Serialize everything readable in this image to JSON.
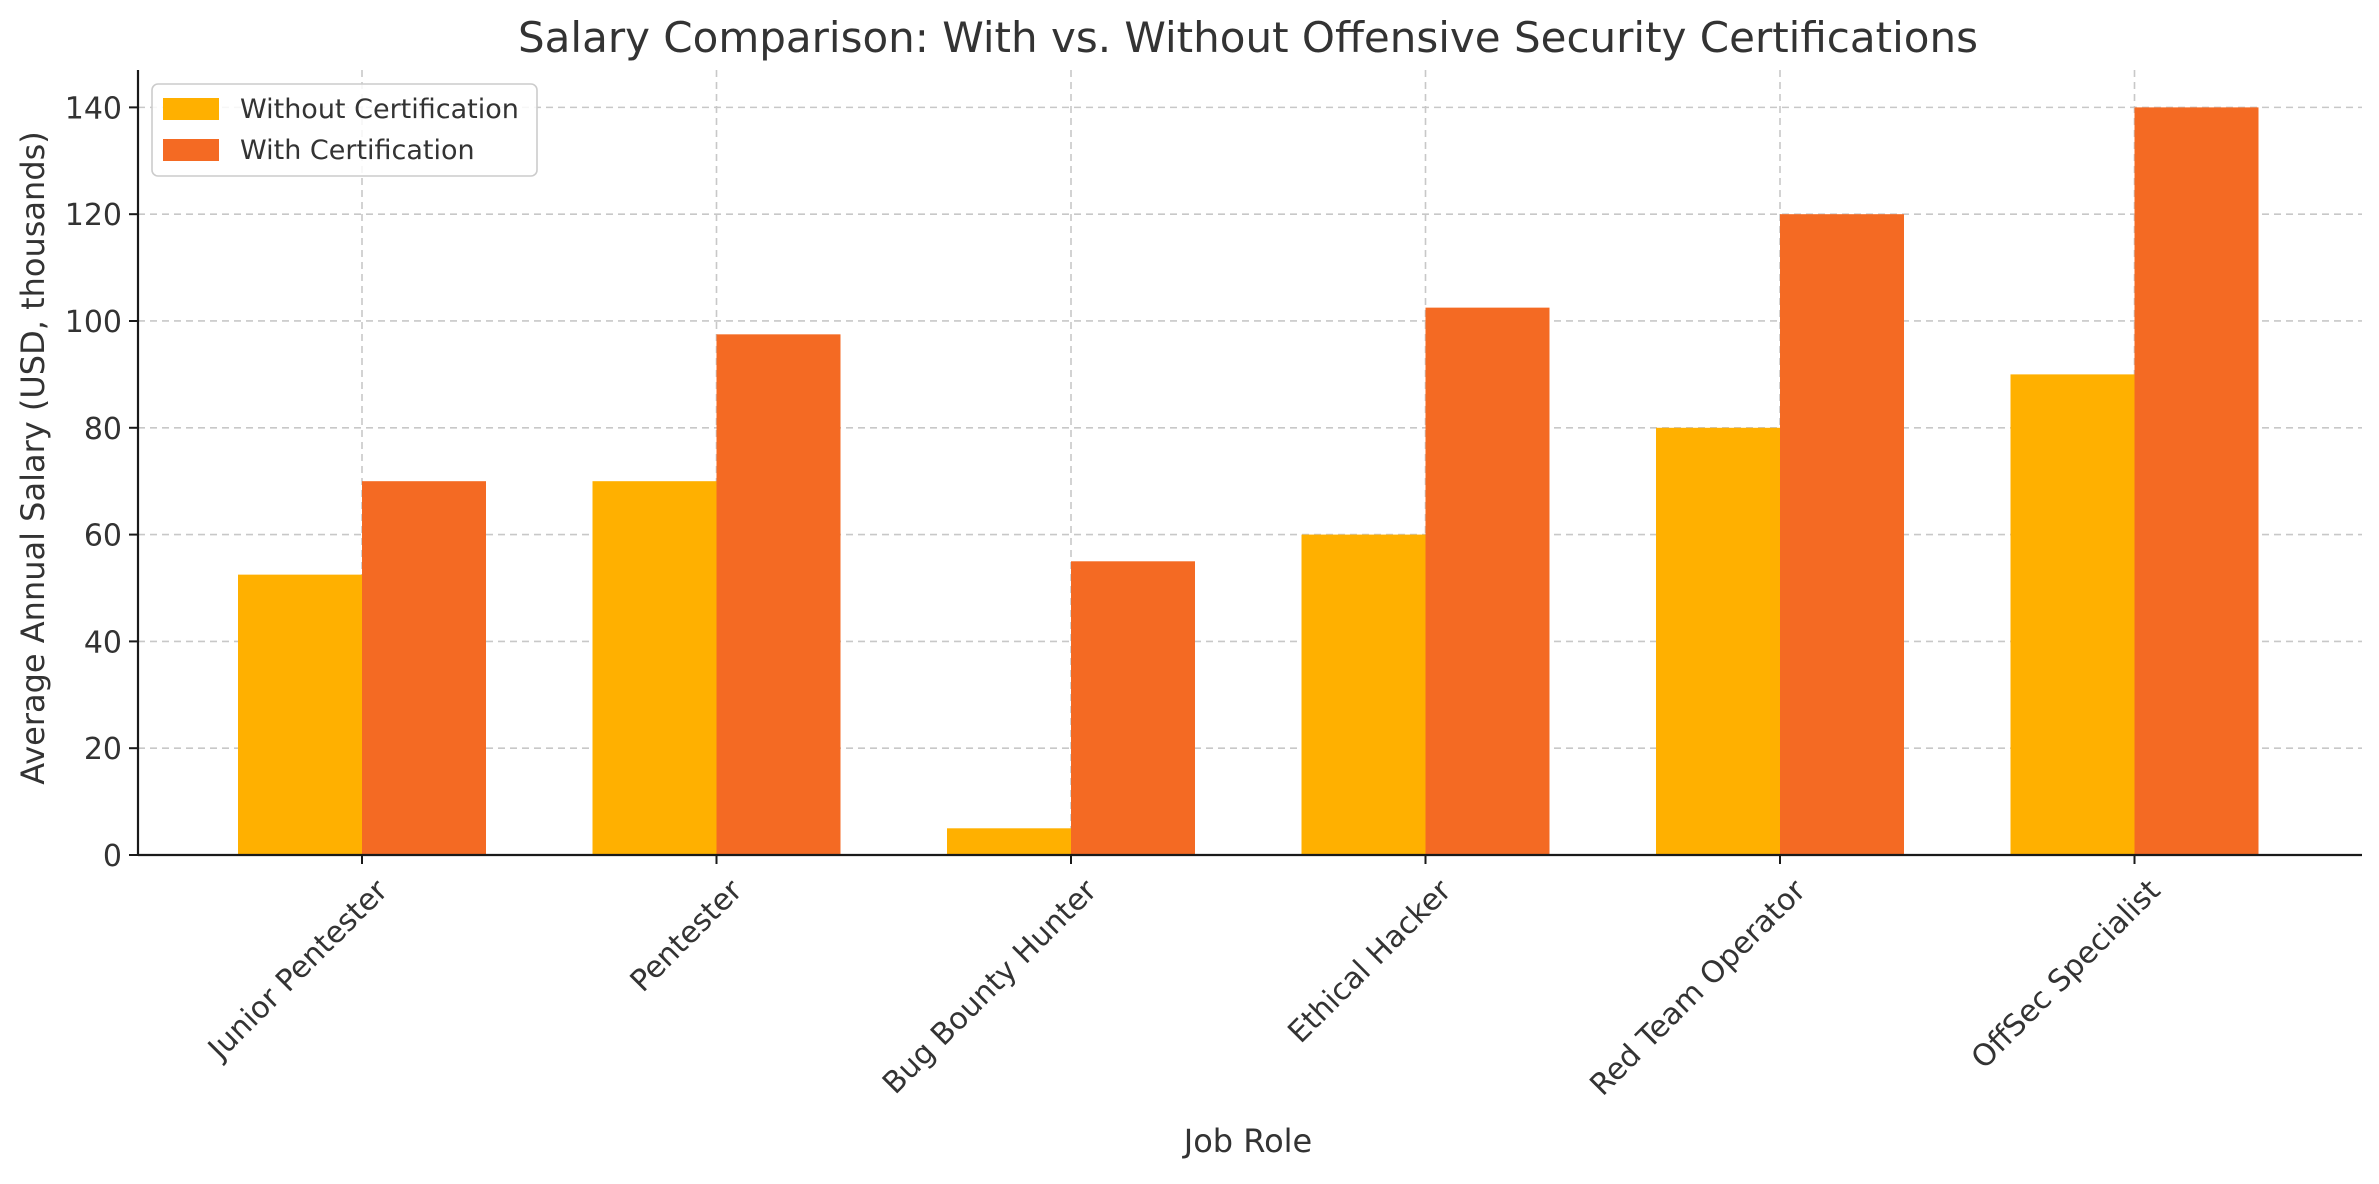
{
  "chart_data": {
    "type": "bar",
    "title": "Salary Comparison: With vs. Without Offensive Security Certifications",
    "xlabel": "Job Role",
    "ylabel": "Average Annual Salary (USD, thousands)",
    "categories": [
      "Junior Pentester",
      "Pentester",
      "Bug Bounty Hunter",
      "Ethical Hacker",
      "Red Team Operator",
      "OffSec Specialist"
    ],
    "series": [
      {
        "name": "Without Certification",
        "values": [
          52.5,
          70,
          5,
          60,
          80,
          90
        ],
        "color": "#FFB000"
      },
      {
        "name": "With Certification",
        "values": [
          70,
          97.5,
          55,
          102.5,
          120,
          140
        ],
        "color": "#F46A23"
      }
    ],
    "ylim": [
      0,
      147
    ],
    "yticks": [
      0,
      20,
      40,
      60,
      80,
      100,
      120,
      140
    ],
    "grid": true,
    "legend_position": "top-left",
    "tick_label_rotation": 45
  }
}
